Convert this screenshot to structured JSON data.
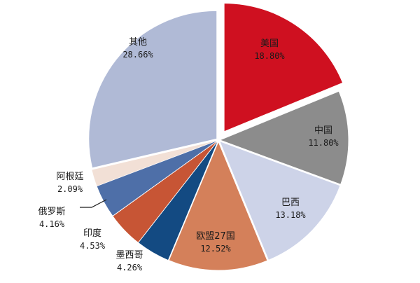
{
  "chart_data": {
    "type": "pie",
    "title": "",
    "unit": "%",
    "slices": [
      {
        "name": "美国",
        "value": 18.8,
        "label": "18.80%",
        "color": "#cf1020",
        "explode": true
      },
      {
        "name": "中国",
        "value": 11.8,
        "label": "11.80%",
        "color": "#8c8c8c",
        "explode": false
      },
      {
        "name": "巴西",
        "value": 13.18,
        "label": "13.18%",
        "color": "#cdd3e8",
        "explode": false
      },
      {
        "name": "欧盟27国",
        "value": 12.52,
        "label": "12.52%",
        "color": "#d4805a",
        "explode": false
      },
      {
        "name": "墨西哥",
        "value": 4.26,
        "label": "4.26%",
        "color": "#134a82",
        "explode": false
      },
      {
        "name": "印度",
        "value": 4.53,
        "label": "4.53%",
        "color": "#c75535",
        "explode": false
      },
      {
        "name": "俄罗斯",
        "value": 4.16,
        "label": "4.16%",
        "color": "#4e6fa8",
        "explode": false
      },
      {
        "name": "阿根廷",
        "value": 2.09,
        "label": "2.09%",
        "color": "#f2e0d6",
        "explode": false
      },
      {
        "name": "其他",
        "value": 28.66,
        "label": "28.66%",
        "color": "#b0bad6",
        "explode": false
      }
    ]
  }
}
